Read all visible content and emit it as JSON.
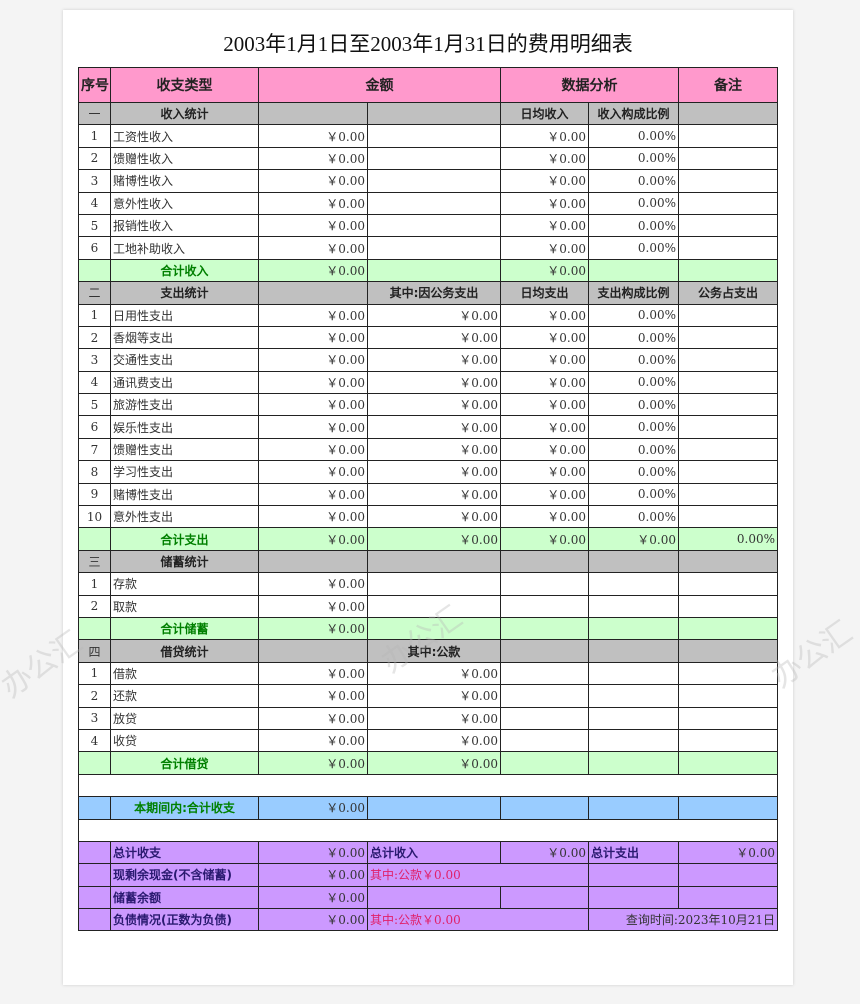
{
  "title": "2003年1月1日至2003年1月31日的费用明细表",
  "watermark": "办公汇",
  "colors": {
    "header": "#ff99cc",
    "section": "#c0c0c0",
    "total": "#ccffcc",
    "period": "#99ccff",
    "summary": "#cc99ff"
  },
  "rows": [
    {
      "type": "hdr",
      "cells": [
        {
          "t": "序号"
        },
        {
          "t": "收支类型"
        },
        {
          "t": "金额",
          "span": 2
        },
        {
          "t": "数据分析",
          "span": 2
        },
        {
          "t": "备注"
        }
      ]
    },
    {
      "type": "gray",
      "cells": [
        {
          "t": "一",
          "cls": "c"
        },
        {
          "t": "收入统计",
          "cls": "c b"
        },
        {
          "t": ""
        },
        {
          "t": ""
        },
        {
          "t": "日均收入",
          "cls": "c b"
        },
        {
          "t": "收入构成比例",
          "cls": "c b"
        },
        {
          "t": ""
        }
      ]
    },
    {
      "type": "white",
      "cells": [
        {
          "t": "1",
          "cls": "c"
        },
        {
          "t": "工资性收入"
        },
        {
          "t": "￥0.00",
          "cls": "r"
        },
        {
          "t": ""
        },
        {
          "t": "￥0.00",
          "cls": "r"
        },
        {
          "t": "0.00%",
          "cls": "r"
        },
        {
          "t": ""
        }
      ]
    },
    {
      "type": "white",
      "cells": [
        {
          "t": "2",
          "cls": "c"
        },
        {
          "t": "馈赠性收入"
        },
        {
          "t": "￥0.00",
          "cls": "r"
        },
        {
          "t": ""
        },
        {
          "t": "￥0.00",
          "cls": "r"
        },
        {
          "t": "0.00%",
          "cls": "r"
        },
        {
          "t": ""
        }
      ]
    },
    {
      "type": "white",
      "cells": [
        {
          "t": "3",
          "cls": "c"
        },
        {
          "t": "赌博性收入"
        },
        {
          "t": "￥0.00",
          "cls": "r"
        },
        {
          "t": ""
        },
        {
          "t": "￥0.00",
          "cls": "r"
        },
        {
          "t": "0.00%",
          "cls": "r"
        },
        {
          "t": ""
        }
      ]
    },
    {
      "type": "white",
      "cells": [
        {
          "t": "4",
          "cls": "c"
        },
        {
          "t": "意外性收入"
        },
        {
          "t": "￥0.00",
          "cls": "r"
        },
        {
          "t": ""
        },
        {
          "t": "￥0.00",
          "cls": "r"
        },
        {
          "t": "0.00%",
          "cls": "r"
        },
        {
          "t": ""
        }
      ]
    },
    {
      "type": "white",
      "cells": [
        {
          "t": "5",
          "cls": "c"
        },
        {
          "t": "报销性收入"
        },
        {
          "t": "￥0.00",
          "cls": "r"
        },
        {
          "t": ""
        },
        {
          "t": "￥0.00",
          "cls": "r"
        },
        {
          "t": "0.00%",
          "cls": "r"
        },
        {
          "t": ""
        }
      ]
    },
    {
      "type": "white",
      "cells": [
        {
          "t": "6",
          "cls": "c"
        },
        {
          "t": "工地补助收入"
        },
        {
          "t": "￥0.00",
          "cls": "r"
        },
        {
          "t": ""
        },
        {
          "t": "￥0.00",
          "cls": "r"
        },
        {
          "t": "0.00%",
          "cls": "r"
        },
        {
          "t": ""
        }
      ]
    },
    {
      "type": "green",
      "cells": [
        {
          "t": ""
        },
        {
          "t": "合计收入",
          "cls": "c g"
        },
        {
          "t": "￥0.00",
          "cls": "r"
        },
        {
          "t": ""
        },
        {
          "t": "￥0.00",
          "cls": "r"
        },
        {
          "t": ""
        },
        {
          "t": ""
        }
      ]
    },
    {
      "type": "gray",
      "cells": [
        {
          "t": "二",
          "cls": "c"
        },
        {
          "t": "支出统计",
          "cls": "c b"
        },
        {
          "t": ""
        },
        {
          "t": "其中:因公务支出",
          "cls": "c b"
        },
        {
          "t": "日均支出",
          "cls": "c b"
        },
        {
          "t": "支出构成比例",
          "cls": "c b"
        },
        {
          "t": "公务占支出",
          "cls": "c b"
        }
      ]
    },
    {
      "type": "white",
      "cells": [
        {
          "t": "1",
          "cls": "c"
        },
        {
          "t": "日用性支出"
        },
        {
          "t": "￥0.00",
          "cls": "r"
        },
        {
          "t": "￥0.00",
          "cls": "r"
        },
        {
          "t": "￥0.00",
          "cls": "r"
        },
        {
          "t": "0.00%",
          "cls": "r"
        },
        {
          "t": ""
        }
      ]
    },
    {
      "type": "white",
      "cells": [
        {
          "t": "2",
          "cls": "c"
        },
        {
          "t": "香烟等支出"
        },
        {
          "t": "￥0.00",
          "cls": "r"
        },
        {
          "t": "￥0.00",
          "cls": "r"
        },
        {
          "t": "￥0.00",
          "cls": "r"
        },
        {
          "t": "0.00%",
          "cls": "r"
        },
        {
          "t": ""
        }
      ]
    },
    {
      "type": "white",
      "cells": [
        {
          "t": "3",
          "cls": "c"
        },
        {
          "t": "交通性支出"
        },
        {
          "t": "￥0.00",
          "cls": "r"
        },
        {
          "t": "￥0.00",
          "cls": "r"
        },
        {
          "t": "￥0.00",
          "cls": "r"
        },
        {
          "t": "0.00%",
          "cls": "r"
        },
        {
          "t": ""
        }
      ]
    },
    {
      "type": "white",
      "cells": [
        {
          "t": "4",
          "cls": "c"
        },
        {
          "t": "通讯费支出"
        },
        {
          "t": "￥0.00",
          "cls": "r"
        },
        {
          "t": "￥0.00",
          "cls": "r"
        },
        {
          "t": "￥0.00",
          "cls": "r"
        },
        {
          "t": "0.00%",
          "cls": "r"
        },
        {
          "t": ""
        }
      ]
    },
    {
      "type": "white",
      "cells": [
        {
          "t": "5",
          "cls": "c"
        },
        {
          "t": "旅游性支出"
        },
        {
          "t": "￥0.00",
          "cls": "r"
        },
        {
          "t": "￥0.00",
          "cls": "r"
        },
        {
          "t": "￥0.00",
          "cls": "r"
        },
        {
          "t": "0.00%",
          "cls": "r"
        },
        {
          "t": ""
        }
      ]
    },
    {
      "type": "white",
      "cells": [
        {
          "t": "6",
          "cls": "c"
        },
        {
          "t": "娱乐性支出"
        },
        {
          "t": "￥0.00",
          "cls": "r"
        },
        {
          "t": "￥0.00",
          "cls": "r"
        },
        {
          "t": "￥0.00",
          "cls": "r"
        },
        {
          "t": "0.00%",
          "cls": "r"
        },
        {
          "t": ""
        }
      ]
    },
    {
      "type": "white",
      "cells": [
        {
          "t": "7",
          "cls": "c"
        },
        {
          "t": "馈赠性支出"
        },
        {
          "t": "￥0.00",
          "cls": "r"
        },
        {
          "t": "￥0.00",
          "cls": "r"
        },
        {
          "t": "￥0.00",
          "cls": "r"
        },
        {
          "t": "0.00%",
          "cls": "r"
        },
        {
          "t": ""
        }
      ]
    },
    {
      "type": "white",
      "cells": [
        {
          "t": "8",
          "cls": "c"
        },
        {
          "t": "学习性支出"
        },
        {
          "t": "￥0.00",
          "cls": "r"
        },
        {
          "t": "￥0.00",
          "cls": "r"
        },
        {
          "t": "￥0.00",
          "cls": "r"
        },
        {
          "t": "0.00%",
          "cls": "r"
        },
        {
          "t": ""
        }
      ]
    },
    {
      "type": "white",
      "cells": [
        {
          "t": "9",
          "cls": "c"
        },
        {
          "t": "赌博性支出"
        },
        {
          "t": "￥0.00",
          "cls": "r"
        },
        {
          "t": "￥0.00",
          "cls": "r"
        },
        {
          "t": "￥0.00",
          "cls": "r"
        },
        {
          "t": "0.00%",
          "cls": "r"
        },
        {
          "t": ""
        }
      ]
    },
    {
      "type": "white",
      "cells": [
        {
          "t": "10",
          "cls": "c"
        },
        {
          "t": "意外性支出"
        },
        {
          "t": "￥0.00",
          "cls": "r"
        },
        {
          "t": "￥0.00",
          "cls": "r"
        },
        {
          "t": "￥0.00",
          "cls": "r"
        },
        {
          "t": "0.00%",
          "cls": "r"
        },
        {
          "t": ""
        }
      ]
    },
    {
      "type": "green",
      "cells": [
        {
          "t": ""
        },
        {
          "t": "合计支出",
          "cls": "c g"
        },
        {
          "t": "￥0.00",
          "cls": "r"
        },
        {
          "t": "￥0.00",
          "cls": "r"
        },
        {
          "t": "￥0.00",
          "cls": "r"
        },
        {
          "t": "￥0.00",
          "cls": "r"
        },
        {
          "t": "0.00%",
          "cls": "r"
        }
      ]
    },
    {
      "type": "gray",
      "cells": [
        {
          "t": "三",
          "cls": "c"
        },
        {
          "t": "储蓄统计",
          "cls": "c b"
        },
        {
          "t": ""
        },
        {
          "t": ""
        },
        {
          "t": ""
        },
        {
          "t": ""
        },
        {
          "t": ""
        }
      ]
    },
    {
      "type": "white",
      "cells": [
        {
          "t": "1",
          "cls": "c"
        },
        {
          "t": "存款"
        },
        {
          "t": "￥0.00",
          "cls": "r"
        },
        {
          "t": ""
        },
        {
          "t": ""
        },
        {
          "t": ""
        },
        {
          "t": ""
        }
      ]
    },
    {
      "type": "white",
      "cells": [
        {
          "t": "2",
          "cls": "c"
        },
        {
          "t": "取款"
        },
        {
          "t": "￥0.00",
          "cls": "r"
        },
        {
          "t": ""
        },
        {
          "t": ""
        },
        {
          "t": ""
        },
        {
          "t": ""
        }
      ]
    },
    {
      "type": "green",
      "cells": [
        {
          "t": ""
        },
        {
          "t": "合计储蓄",
          "cls": "c g"
        },
        {
          "t": "￥0.00",
          "cls": "r"
        },
        {
          "t": ""
        },
        {
          "t": ""
        },
        {
          "t": ""
        },
        {
          "t": ""
        }
      ]
    },
    {
      "type": "gray",
      "cells": [
        {
          "t": "四",
          "cls": "c"
        },
        {
          "t": "借贷统计",
          "cls": "c b"
        },
        {
          "t": ""
        },
        {
          "t": "其中:公款",
          "cls": "c b"
        },
        {
          "t": ""
        },
        {
          "t": ""
        },
        {
          "t": ""
        }
      ]
    },
    {
      "type": "white",
      "cells": [
        {
          "t": "1",
          "cls": "c"
        },
        {
          "t": "借款"
        },
        {
          "t": "￥0.00",
          "cls": "r"
        },
        {
          "t": "￥0.00",
          "cls": "r"
        },
        {
          "t": ""
        },
        {
          "t": ""
        },
        {
          "t": ""
        }
      ]
    },
    {
      "type": "white",
      "cells": [
        {
          "t": "2",
          "cls": "c"
        },
        {
          "t": "还款"
        },
        {
          "t": "￥0.00",
          "cls": "r"
        },
        {
          "t": "￥0.00",
          "cls": "r"
        },
        {
          "t": ""
        },
        {
          "t": ""
        },
        {
          "t": ""
        }
      ]
    },
    {
      "type": "white",
      "cells": [
        {
          "t": "3",
          "cls": "c"
        },
        {
          "t": "放贷"
        },
        {
          "t": "￥0.00",
          "cls": "r"
        },
        {
          "t": "￥0.00",
          "cls": "r"
        },
        {
          "t": ""
        },
        {
          "t": ""
        },
        {
          "t": ""
        }
      ]
    },
    {
      "type": "white",
      "cells": [
        {
          "t": "4",
          "cls": "c"
        },
        {
          "t": "收贷"
        },
        {
          "t": "￥0.00",
          "cls": "r"
        },
        {
          "t": "￥0.00",
          "cls": "r"
        },
        {
          "t": ""
        },
        {
          "t": ""
        },
        {
          "t": ""
        }
      ]
    },
    {
      "type": "green",
      "cells": [
        {
          "t": ""
        },
        {
          "t": "合计借贷",
          "cls": "c g"
        },
        {
          "t": "￥0.00",
          "cls": "r"
        },
        {
          "t": "￥0.00",
          "cls": "r"
        },
        {
          "t": ""
        },
        {
          "t": ""
        },
        {
          "t": ""
        }
      ]
    },
    {
      "type": "white",
      "cells": [
        {
          "t": "",
          "span": 7
        }
      ]
    },
    {
      "type": "blue",
      "cells": [
        {
          "t": ""
        },
        {
          "t": "本期间内:合计收支",
          "cls": "c g"
        },
        {
          "t": "￥0.00",
          "cls": "r"
        },
        {
          "t": ""
        },
        {
          "t": ""
        },
        {
          "t": ""
        },
        {
          "t": ""
        }
      ]
    },
    {
      "type": "white",
      "cells": [
        {
          "t": "",
          "span": 7
        }
      ]
    },
    {
      "type": "purple",
      "cells": [
        {
          "t": ""
        },
        {
          "t": "总计收支",
          "cls": "p"
        },
        {
          "t": "￥0.00",
          "cls": "r"
        },
        {
          "t": "总计收入",
          "cls": "p"
        },
        {
          "t": "￥0.00",
          "cls": "r"
        },
        {
          "t": "总计支出",
          "cls": "p"
        },
        {
          "t": "￥0.00",
          "cls": "r"
        }
      ]
    },
    {
      "type": "purple",
      "cells": [
        {
          "t": ""
        },
        {
          "t": "现剩余现金(不含储蓄)",
          "cls": "p"
        },
        {
          "t": "￥0.00",
          "cls": "r"
        },
        {
          "t": "其中:公款￥0.00",
          "cls": "red",
          "span": 2
        },
        {
          "t": ""
        },
        {
          "t": ""
        }
      ]
    },
    {
      "type": "purple",
      "cells": [
        {
          "t": ""
        },
        {
          "t": "储蓄余额",
          "cls": "p"
        },
        {
          "t": "￥0.00",
          "cls": "r"
        },
        {
          "t": ""
        },
        {
          "t": ""
        },
        {
          "t": ""
        },
        {
          "t": ""
        }
      ]
    },
    {
      "type": "purple",
      "cells": [
        {
          "t": ""
        },
        {
          "t": "负债情况(正数为负债)",
          "cls": "p"
        },
        {
          "t": "￥0.00",
          "cls": "r"
        },
        {
          "t": "其中:公款￥0.00",
          "cls": "red",
          "span": 2
        },
        {
          "t": "查询时间:2023年10月21日",
          "cls": "r",
          "span": 2
        }
      ]
    }
  ]
}
